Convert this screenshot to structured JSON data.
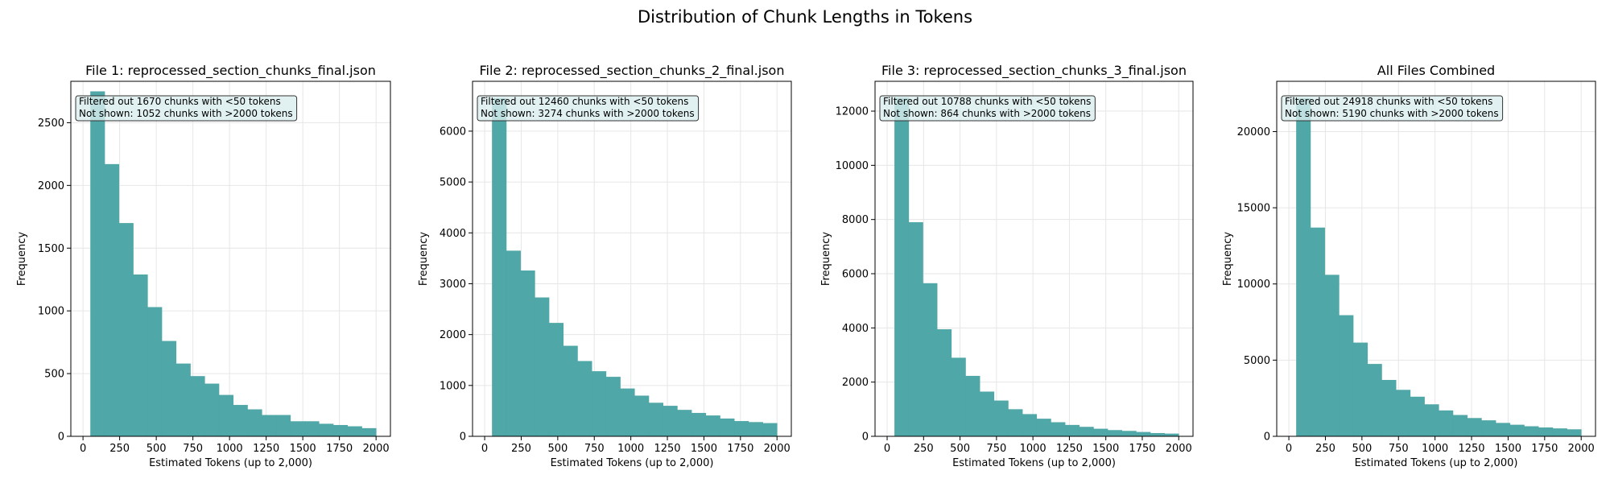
{
  "figure": {
    "suptitle": "Distribution of Chunk Lengths in Tokens"
  },
  "colors": {
    "bar": "#4ca5a5",
    "grid": "#e6e6e6",
    "annotation_bg": "#d9eeee"
  },
  "chart_data": [
    {
      "type": "bar",
      "title": "File 1: reprocessed_section_chunks_final.json",
      "xlabel": "Estimated Tokens (up to 2,000)",
      "ylabel": "Frequency",
      "xlim": [
        -83,
        2098
      ],
      "ylim": [
        0,
        2830
      ],
      "xticks": [
        0,
        250,
        500,
        750,
        1000,
        1250,
        1500,
        1750,
        2000
      ],
      "xtick_labels": [
        "0",
        "250",
        "500",
        "750",
        "1000",
        "1250",
        "1500",
        "1750",
        "2000"
      ],
      "yticks": [
        0,
        500,
        1000,
        1500,
        2000,
        2500
      ],
      "ytick_labels": [
        "0",
        "500",
        "1000",
        "1500",
        "2000",
        "2500"
      ],
      "grid": true,
      "bin_edges": [
        50,
        147.5,
        245,
        342.5,
        440,
        537.5,
        635,
        732.5,
        830,
        927.5,
        1025,
        1122.5,
        1220,
        1317.5,
        1415,
        1512.5,
        1610,
        1707.5,
        1805,
        1902.5,
        2000
      ],
      "values": [
        2750,
        2170,
        1700,
        1290,
        1030,
        760,
        580,
        480,
        420,
        330,
        250,
        215,
        170,
        170,
        120,
        120,
        100,
        90,
        80,
        65
      ],
      "annotation": [
        "Filtered out 1670 chunks with <50 tokens",
        "Not shown: 1052 chunks with >2000 tokens"
      ]
    },
    {
      "type": "bar",
      "title": "File 2: reprocessed_section_chunks_2_final.json",
      "xlabel": "Estimated Tokens (up to 2,000)",
      "ylabel": "Frequency",
      "xlim": [
        -83,
        2098
      ],
      "ylim": [
        0,
        6980
      ],
      "xticks": [
        0,
        250,
        500,
        750,
        1000,
        1250,
        1500,
        1750,
        2000
      ],
      "xtick_labels": [
        "0",
        "250",
        "500",
        "750",
        "1000",
        "1250",
        "1500",
        "1750",
        "2000"
      ],
      "yticks": [
        0,
        1000,
        2000,
        3000,
        4000,
        5000,
        6000
      ],
      "ytick_labels": [
        "0",
        "1000",
        "2000",
        "3000",
        "4000",
        "5000",
        "6000"
      ],
      "grid": true,
      "bin_edges": [
        50,
        147.5,
        245,
        342.5,
        440,
        537.5,
        635,
        732.5,
        830,
        927.5,
        1025,
        1122.5,
        1220,
        1317.5,
        1415,
        1512.5,
        1610,
        1707.5,
        1805,
        1902.5,
        2000
      ],
      "values": [
        6650,
        3650,
        3260,
        2730,
        2230,
        1780,
        1480,
        1280,
        1170,
        940,
        800,
        660,
        600,
        520,
        460,
        410,
        350,
        300,
        280,
        260
      ],
      "annotation": [
        "Filtered out 12460 chunks with <50 tokens",
        "Not shown: 3274 chunks with >2000 tokens"
      ]
    },
    {
      "type": "bar",
      "title": "File 3: reprocessed_section_chunks_3_final.json",
      "xlabel": "Estimated Tokens (up to 2,000)",
      "ylabel": "Frequency",
      "xlim": [
        -83,
        2098
      ],
      "ylim": [
        0,
        13100
      ],
      "xticks": [
        0,
        250,
        500,
        750,
        1000,
        1250,
        1500,
        1750,
        2000
      ],
      "xtick_labels": [
        "0",
        "250",
        "500",
        "750",
        "1000",
        "1250",
        "1500",
        "1750",
        "2000"
      ],
      "yticks": [
        0,
        2000,
        4000,
        6000,
        8000,
        10000,
        12000
      ],
      "ytick_labels": [
        "0",
        "2000",
        "4000",
        "6000",
        "8000",
        "10000",
        "12000"
      ],
      "grid": true,
      "bin_edges": [
        50,
        147.5,
        245,
        342.5,
        440,
        537.5,
        635,
        732.5,
        830,
        927.5,
        1025,
        1122.5,
        1220,
        1317.5,
        1415,
        1512.5,
        1610,
        1707.5,
        1805,
        1902.5,
        2000
      ],
      "values": [
        12500,
        7900,
        5650,
        3950,
        2900,
        2230,
        1650,
        1320,
        1000,
        820,
        650,
        520,
        420,
        350,
        280,
        230,
        200,
        160,
        120,
        100
      ],
      "annotation": [
        "Filtered out 10788 chunks with <50 tokens",
        "Not shown: 864 chunks with >2000 tokens"
      ]
    },
    {
      "type": "bar",
      "title": "All Files Combined",
      "xlabel": "Estimated Tokens (up to 2,000)",
      "ylabel": "Frequency",
      "xlim": [
        -83,
        2098
      ],
      "ylim": [
        0,
        23300
      ],
      "xticks": [
        0,
        250,
        500,
        750,
        1000,
        1250,
        1500,
        1750,
        2000
      ],
      "xtick_labels": [
        "0",
        "250",
        "500",
        "750",
        "1000",
        "1250",
        "1500",
        "1750",
        "2000"
      ],
      "yticks": [
        0,
        5000,
        10000,
        15000,
        20000
      ],
      "ytick_labels": [
        "0",
        "5000",
        "10000",
        "15000",
        "20000"
      ],
      "grid": true,
      "bin_edges": [
        50,
        147.5,
        245,
        342.5,
        440,
        537.5,
        635,
        732.5,
        830,
        927.5,
        1025,
        1122.5,
        1220,
        1317.5,
        1415,
        1512.5,
        1610,
        1707.5,
        1805,
        1902.5,
        2000
      ],
      "values": [
        22200,
        13700,
        10600,
        7950,
        6150,
        4750,
        3700,
        3050,
        2600,
        2100,
        1700,
        1400,
        1200,
        1050,
        880,
        760,
        660,
        580,
        520,
        460
      ],
      "annotation": [
        "Filtered out 24918 chunks with <50 tokens",
        "Not shown: 5190 chunks with >2000 tokens"
      ]
    }
  ]
}
